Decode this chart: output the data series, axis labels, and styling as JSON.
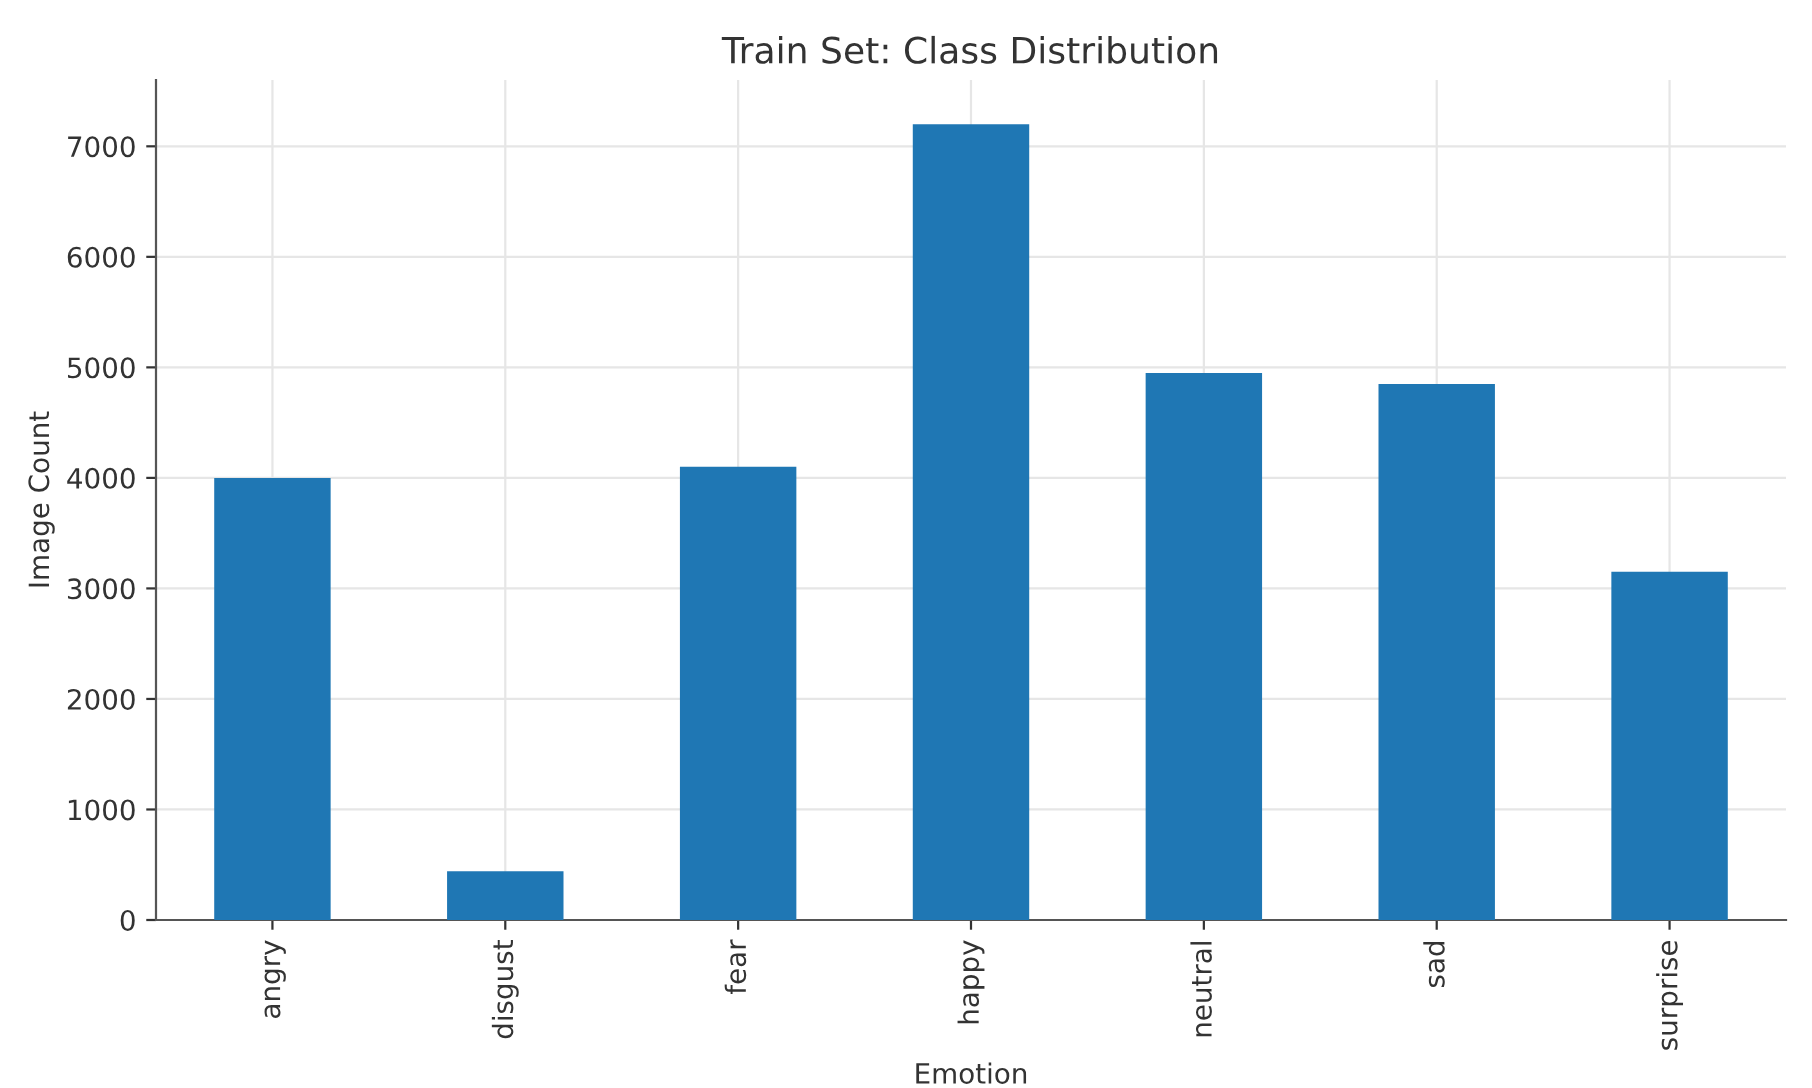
{
  "chart_data": {
    "type": "bar",
    "title": "Train Set: Class Distribution",
    "xlabel": "Emotion",
    "ylabel": "Image Count",
    "categories": [
      "angry",
      "disgust",
      "fear",
      "happy",
      "neutral",
      "sad",
      "surprise"
    ],
    "values": [
      4000,
      440,
      4100,
      7200,
      4950,
      4850,
      3150
    ],
    "color": "#1f77b4",
    "ylim": [
      0,
      7600
    ],
    "yticks": [
      0,
      1000,
      2000,
      3000,
      4000,
      5000,
      6000,
      7000
    ],
    "grid": true,
    "legend": false
  }
}
